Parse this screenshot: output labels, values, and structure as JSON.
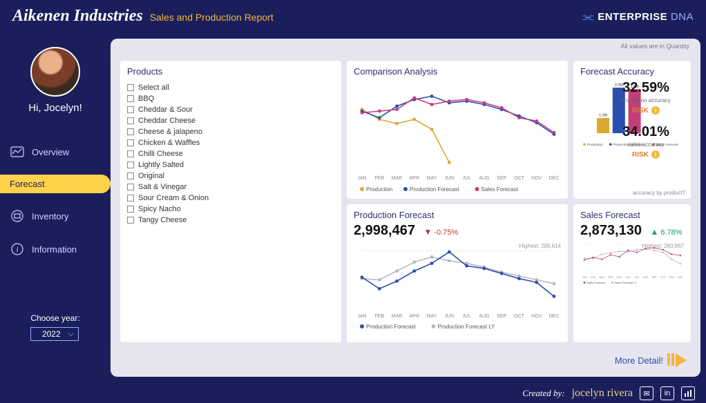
{
  "header": {
    "brand": "Aikenen Industries",
    "subtitle": "Sales and Production Report",
    "logo_text_bold": "ENTERPRISE",
    "logo_text_thin": "DNA"
  },
  "sidebar": {
    "greeting": "Hi, Jocelyn!",
    "nav": [
      {
        "label": "Overview",
        "active": false
      },
      {
        "label": "Forecast",
        "active": true
      },
      {
        "label": "Inventory",
        "active": false
      },
      {
        "label": "Information",
        "active": false
      }
    ],
    "choose_year_label": "Choose year:",
    "year": "2022"
  },
  "canvas_note": "All values are in Quantity",
  "months": [
    "JAN",
    "FEB",
    "MAR",
    "APR",
    "MAY",
    "JUN",
    "JUL",
    "AUG",
    "SEP",
    "OCT",
    "NOV",
    "DEC"
  ],
  "comparison": {
    "title": "Comparison Analysis",
    "type": "line",
    "colors": {
      "production": "#e0a730",
      "prod_forecast": "#2b4fae",
      "sales_forecast": "#c23d7a"
    },
    "series": {
      "production": [
        72,
        60,
        55,
        60,
        48,
        8,
        null,
        null,
        null,
        null,
        null,
        null
      ],
      "prod_forecast": [
        70,
        62,
        76,
        84,
        88,
        80,
        82,
        78,
        72,
        64,
        56,
        42
      ],
      "sales_forecast": [
        68,
        70,
        72,
        86,
        78,
        82,
        84,
        80,
        74,
        62,
        58,
        44
      ]
    },
    "ylim": [
      0,
      100
    ],
    "legend": [
      "Production",
      "Production Forecast",
      "Sales Forecast"
    ]
  },
  "accuracy": {
    "title": "Forecast Accuracy",
    "bars": {
      "labels": [
        "1.0M",
        "3.0M",
        "2.9M"
      ],
      "values": [
        1.0,
        3.0,
        2.9
      ],
      "colors": [
        "#e0a730",
        "#2b4fae",
        "#c23d7a"
      ],
      "names": [
        "Production",
        "Production Forecast",
        "Sales Forecast"
      ]
    },
    "prod_accuracy": {
      "value": "32.59%",
      "label": "production accuracy",
      "risk": "RISK"
    },
    "sales_accuracy": {
      "value": "34.01%",
      "label": "sales accuracy",
      "risk": "RISK"
    },
    "footnote": "accuracy by product?"
  },
  "prod_forecast": {
    "title": "Production Forecast",
    "value": "2,998,467",
    "delta": "-0.75%",
    "direction": "down",
    "highest_label": "Highest: 288,614",
    "colors": {
      "current": "#2b4fae",
      "ly": "#b8b8c3"
    },
    "series": {
      "current": [
        48,
        30,
        42,
        58,
        70,
        88,
        66,
        62,
        54,
        46,
        40,
        18
      ],
      "ly": [
        46,
        44,
        58,
        72,
        80,
        74,
        70,
        64,
        56,
        50,
        44,
        38
      ]
    },
    "legend": [
      "Production Forecast",
      "Production Forecast LY"
    ]
  },
  "sales_forecast": {
    "title": "Sales Forecast",
    "value": "2,873,130",
    "delta": "6.78%",
    "direction": "up",
    "highest_label": "Highest: 280,867",
    "colors": {
      "current": "#c23d7a",
      "ly": "#b8b8c3"
    },
    "series": {
      "current": [
        42,
        50,
        44,
        58,
        52,
        72,
        66,
        78,
        80,
        74,
        60,
        56
      ],
      "ly": [
        48,
        46,
        60,
        64,
        70,
        68,
        74,
        76,
        72,
        66,
        44,
        30
      ]
    },
    "legend": [
      "Sales Forecast",
      "Sales Forecast LY"
    ]
  },
  "products": {
    "title": "Products",
    "items": [
      "Select all",
      "BBQ",
      "Cheddar & Sour",
      "Cheddar Cheese",
      "Cheese & jalapeno",
      "Chicken & Waffles",
      "Chilli Cheese",
      "Lightly Salted",
      "Original",
      "Salt & Vinegar",
      "Sour Cream & Onion",
      "Spicy Nacho",
      "Tangy Cheese"
    ]
  },
  "more_detail_label": "More Detail!",
  "footer": {
    "created_label": "Created by:",
    "author": "jocelyn rivera"
  }
}
